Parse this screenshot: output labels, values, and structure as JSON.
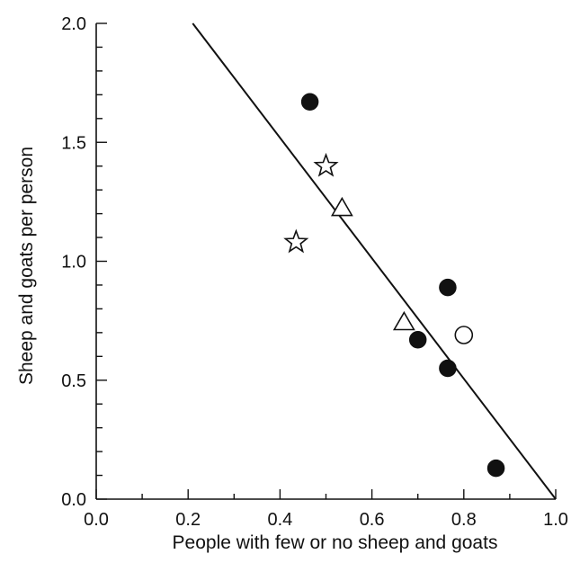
{
  "chart_data": {
    "type": "scatter",
    "title": "",
    "xlabel": "People with few or no sheep and goats",
    "ylabel": "Sheep and goats per person",
    "xlim": [
      0.0,
      1.0
    ],
    "ylim": [
      0.0,
      2.0
    ],
    "x_major_ticks": [
      0.0,
      0.2,
      0.4,
      0.6,
      0.8,
      1.0
    ],
    "x_tick_labels": [
      "0.0",
      "0.2",
      "0.4",
      "0.6",
      "0.8",
      "1.0"
    ],
    "y_major_ticks": [
      0.0,
      0.5,
      1.0,
      1.5,
      2.0
    ],
    "y_tick_labels": [
      "0.0",
      "0.5",
      "1.0",
      "1.5",
      "2.0"
    ],
    "x_minor_step": 0.1,
    "y_minor_step": 0.1,
    "grid": false,
    "legend": "none",
    "series": [
      {
        "marker": "filled-circle",
        "x": [
          0.465,
          0.765,
          0.7,
          0.765,
          0.87
        ],
        "y": [
          1.67,
          0.89,
          0.67,
          0.55,
          0.13
        ]
      },
      {
        "marker": "open-circle",
        "x": [
          0.8
        ],
        "y": [
          0.69
        ]
      },
      {
        "marker": "open-triangle",
        "x": [
          0.535,
          0.67
        ],
        "y": [
          1.22,
          0.74
        ]
      },
      {
        "marker": "open-star",
        "x": [
          0.5,
          0.435
        ],
        "y": [
          1.4,
          1.08
        ]
      }
    ],
    "fit_line": {
      "x": [
        0.21,
        1.0
      ],
      "y": [
        2.0,
        0.0
      ]
    }
  }
}
